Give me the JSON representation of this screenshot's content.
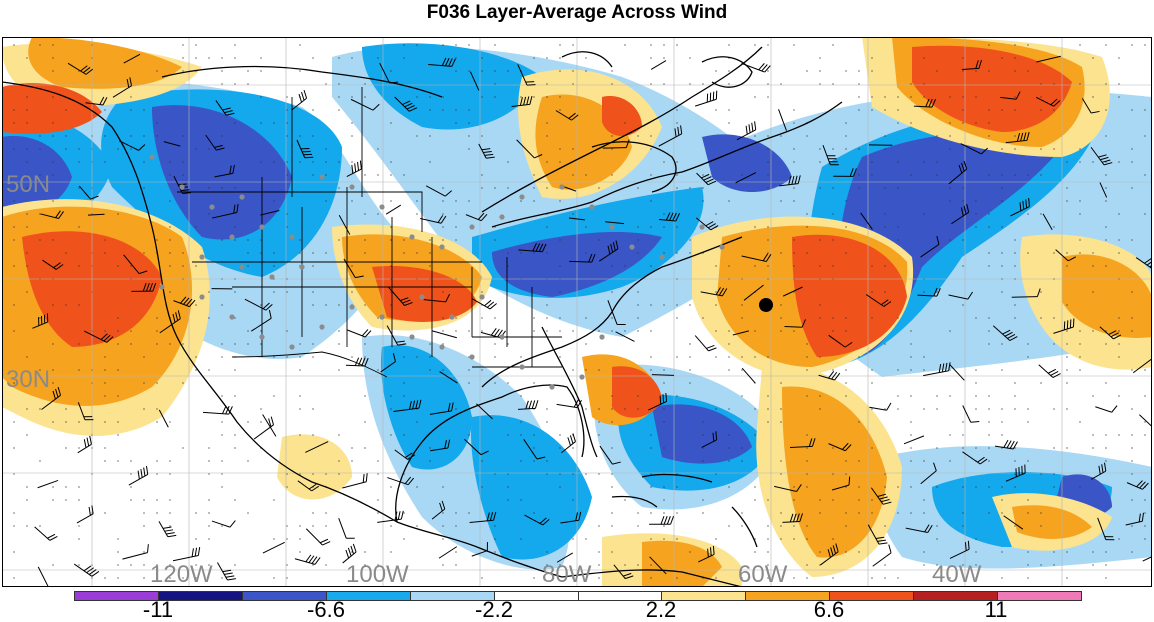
{
  "title": "F036 Layer-Average Across Wind",
  "map": {
    "lat_labels": [
      "50N",
      "30N"
    ],
    "lon_labels": [
      "120W",
      "100W",
      "80W",
      "60W",
      "40W"
    ],
    "field_colors": {
      "strong_neg": "#3a55c6",
      "mid_neg": "#14a8ec",
      "weak_neg": "#a9d8f5",
      "weak_pos": "#fce38f",
      "mid_pos": "#f6a31f",
      "strong_pos": "#f0521c",
      "background": "#ffffff"
    }
  },
  "colorbar": {
    "colors": [
      "#9b3cd8",
      "#141482",
      "#3c55c8",
      "#19aaee",
      "#a9d8f5",
      "#ffffff",
      "#ffffff",
      "#fce38f",
      "#f6a31f",
      "#f0521c",
      "#b62020",
      "#f07ab8"
    ],
    "labels": [
      "-11",
      "-6.6",
      "-2.2",
      "2.2",
      "6.6",
      "11"
    ]
  }
}
